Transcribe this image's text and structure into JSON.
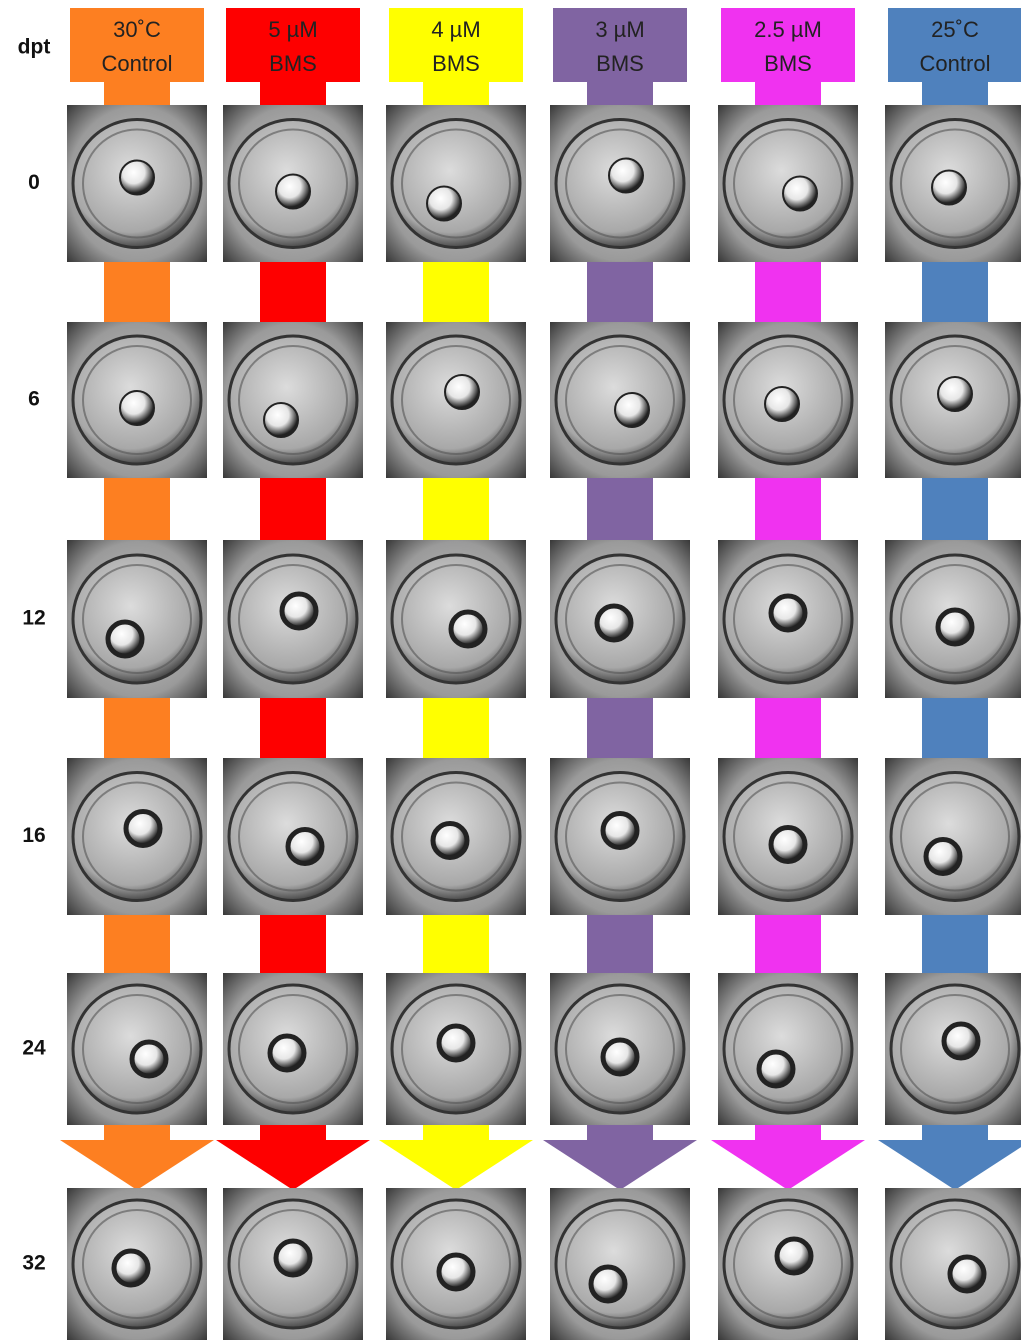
{
  "header": {
    "row_axis_label": "dpt"
  },
  "columns": [
    {
      "line1": "30˚C",
      "line2": "Control",
      "color": "#fd7f21"
    },
    {
      "line1": "5 µM",
      "line2": "BMS",
      "color": "#fe0000"
    },
    {
      "line1": "4 µM",
      "line2": "BMS",
      "color": "#ffff00"
    },
    {
      "line1": "3 µM",
      "line2": "BMS",
      "color": "#8064a2"
    },
    {
      "line1": "2.5 µM",
      "line2": "BMS",
      "color": "#f032f0"
    },
    {
      "line1": "25˚C",
      "line2": "Control",
      "color": "#4f81bd"
    }
  ],
  "rows": [
    "0",
    "6",
    "12",
    "16",
    "24",
    "32"
  ]
}
